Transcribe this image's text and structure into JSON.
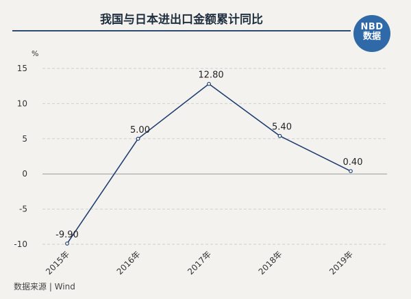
{
  "header": {
    "title": "我国与日本进出口金额累计同比",
    "logo_line1": "NBD",
    "logo_line2": "数据"
  },
  "footer": {
    "source": "数据来源 | Wind"
  },
  "colors": {
    "accent": "#1f3f73",
    "logo_bg": "#2f69a8",
    "background": "#f4f2ee"
  },
  "chart_data": {
    "type": "line",
    "unit_label": "%",
    "categories": [
      "2015年",
      "2016年",
      "2017年",
      "2018年",
      "2019年"
    ],
    "series": [
      {
        "values": [
          -9.9,
          5.0,
          12.8,
          5.4,
          0.4
        ]
      }
    ],
    "data_labels": [
      "-9.90",
      "5.00",
      "12.80",
      "5.40",
      "0.40"
    ],
    "y_ticks": [
      15,
      10,
      5,
      0,
      -5,
      -10
    ],
    "ylim": [
      -10,
      15
    ],
    "grid": true
  }
}
